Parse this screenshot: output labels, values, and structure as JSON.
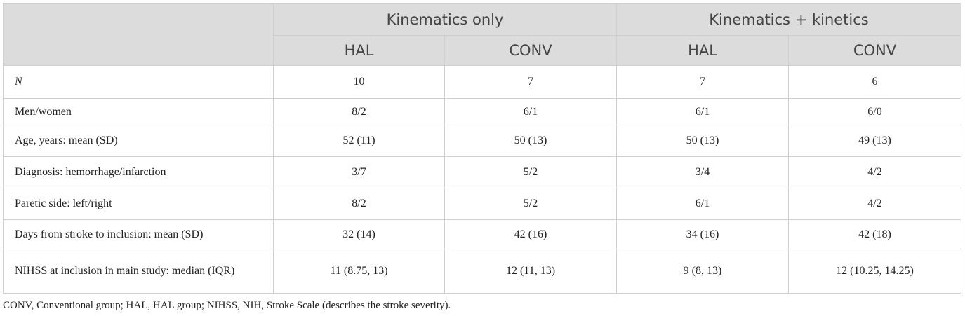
{
  "header": {
    "groups": [
      "Kinematics only",
      "Kinematics + kinetics"
    ],
    "subgroups": [
      "HAL",
      "CONV",
      "HAL",
      "CONV"
    ]
  },
  "table": {
    "rows": [
      [
        "N",
        "10",
        "7",
        "7",
        "6"
      ],
      [
        "Men/women",
        "8/2",
        "6/1",
        "6/1",
        "6/0"
      ],
      [
        "Age, years: mean (SD)",
        "52 (11)",
        "50 (13)",
        "50 (13)",
        "49 (13)"
      ],
      [
        "Diagnosis: hemorrhage/infarction",
        "3/7",
        "5/2",
        "3/4",
        "4/2"
      ],
      [
        "Paretic side: left/right",
        "8/2",
        "5/2",
        "6/1",
        "4/2"
      ],
      [
        "Days from stroke to inclusion: mean (SD)",
        "32 (14)",
        "42 (16)",
        "34 (16)",
        "42 (18)"
      ],
      [
        "NIHSS at inclusion in main study: median (IQR)",
        "11 (8.75, 13)",
        "12 (11, 13)",
        "9 (8, 13)",
        "12 (10.25, 14.25)"
      ]
    ]
  },
  "footnote": "CONV, Conventional group; HAL, HAL group; NIHSS, NIH, Stroke Scale (describes the stroke severity)."
}
